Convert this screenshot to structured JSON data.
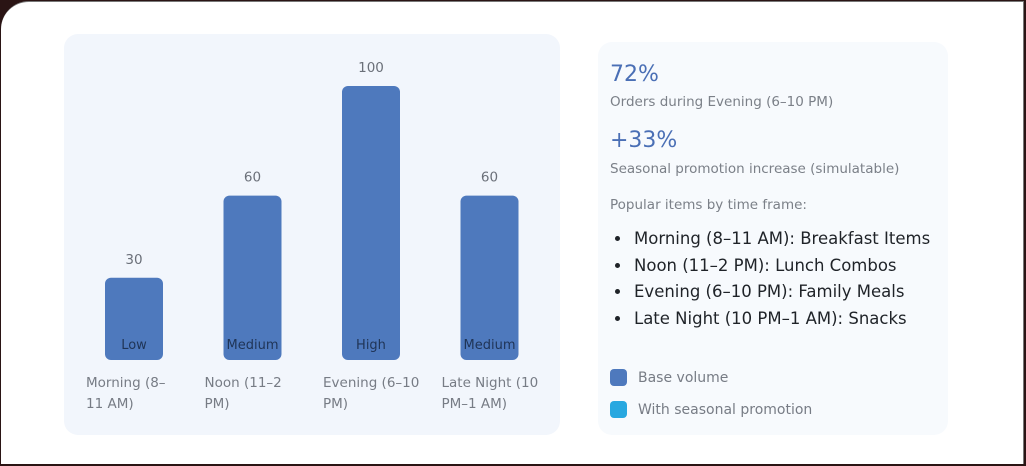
{
  "chart_data": {
    "type": "bar",
    "categories": [
      "Morning (8–11 AM)",
      "Noon (11–2 PM)",
      "Evening (6–10 PM)",
      "Late Night (10 PM–1 AM)"
    ],
    "category_lines": [
      [
        "Morning (8–",
        "11 AM)"
      ],
      [
        "Noon (11–2",
        "PM)"
      ],
      [
        "Evening (6–10",
        "PM)"
      ],
      [
        "Late Night (10",
        "PM–1 AM)"
      ]
    ],
    "values": [
      30,
      60,
      100,
      60
    ],
    "value_labels": [
      "30",
      "60",
      "100",
      "60"
    ],
    "bar_labels": [
      "Low",
      "Medium",
      "High",
      "Medium"
    ],
    "ylim": [
      0,
      100
    ],
    "grid": false,
    "bar_color": "#4e79bd"
  },
  "stats": [
    {
      "value": "72%",
      "label": "Orders during Evening (6–10 PM)"
    },
    {
      "value": "+33%",
      "label": "Seasonal promotion increase (simulatable)"
    }
  ],
  "popular": {
    "heading": "Popular items by time frame:",
    "items": [
      "Morning (8–11 AM): Breakfast Items",
      "Noon (11–2 PM): Lunch Combos",
      "Evening (6–10 PM): Family Meals",
      "Late Night (10 PM–1 AM): Snacks"
    ]
  },
  "legend": [
    {
      "label": "Base volume",
      "color": "#4e79bd"
    },
    {
      "label": "With seasonal promotion",
      "color": "#28a8e0"
    }
  ]
}
